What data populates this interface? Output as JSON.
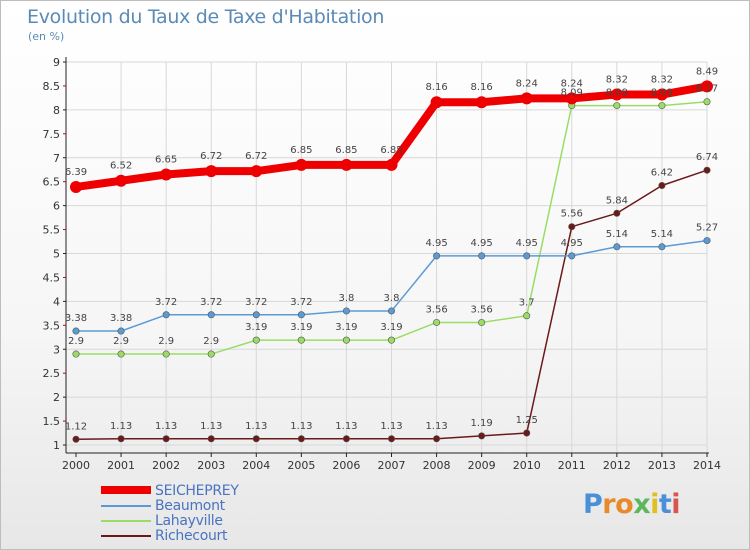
{
  "title": "Evolution du Taux de Taxe d'Habitation",
  "subtitle": "(en %)",
  "logo_text": "Proxiti",
  "colors": {
    "SEICHEPREY": "#ee0000",
    "Beaumont": "#5b9bd5",
    "Lahayville": "#99dd66",
    "Richecourt": "#6b1a1a",
    "grid": "#d8d8d8",
    "title": "#5a8ab6"
  },
  "chart_data": {
    "type": "line",
    "x": [
      2000,
      2001,
      2002,
      2003,
      2004,
      2005,
      2006,
      2007,
      2008,
      2009,
      2010,
      2011,
      2012,
      2013,
      2014
    ],
    "ylim": [
      1,
      9
    ],
    "yticks": [
      1,
      1.5,
      2,
      2.5,
      3,
      3.5,
      4,
      4.5,
      5,
      5.5,
      6,
      6.5,
      7,
      7.5,
      8,
      8.5,
      9
    ],
    "grid": true,
    "legend": "bottom-left",
    "series": [
      {
        "name": "SEICHEPREY",
        "values": [
          6.39,
          6.52,
          6.65,
          6.72,
          6.72,
          6.85,
          6.85,
          6.85,
          8.16,
          8.16,
          8.24,
          8.24,
          8.32,
          8.32,
          8.49
        ]
      },
      {
        "name": "Beaumont",
        "values": [
          3.38,
          3.38,
          3.72,
          3.72,
          3.72,
          3.72,
          3.8,
          3.8,
          4.95,
          4.95,
          4.95,
          4.95,
          5.14,
          5.14,
          5.27
        ]
      },
      {
        "name": "Lahayville",
        "values": [
          2.9,
          2.9,
          2.9,
          2.9,
          3.19,
          3.19,
          3.19,
          3.19,
          3.56,
          3.56,
          3.7,
          8.09,
          8.09,
          8.09,
          8.17
        ]
      },
      {
        "name": "Richecourt",
        "values": [
          1.12,
          1.13,
          1.13,
          1.13,
          1.13,
          1.13,
          1.13,
          1.13,
          1.13,
          1.19,
          1.25,
          5.56,
          5.84,
          6.42,
          6.74
        ]
      }
    ]
  }
}
